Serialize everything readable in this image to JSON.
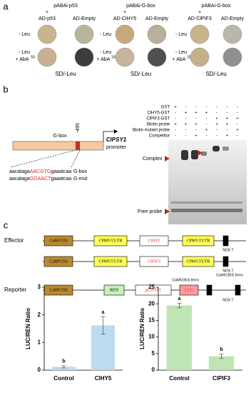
{
  "panel_a": {
    "label": "a",
    "groups": [
      {
        "title": "pABAi-p53",
        "plus": "+",
        "ad": "AD-p53",
        "empty": "AD-Empty",
        "row1": "- Leu",
        "row2": "- Leu",
        "row2b": "+ AbA",
        "sup": "50",
        "medium": "SD/-Leu"
      },
      {
        "title": "pABAi-G-box",
        "plus": "+",
        "ad": "AD-ClHY5",
        "empty": "AD-Empty",
        "row1": "- Leu",
        "row2": "- Leu",
        "row2b": "+ AbA",
        "sup": "150",
        "medium": "SD/-Leu"
      },
      {
        "title": "pABAi-G-box",
        "plus": "+",
        "ad": "AD-ClPIF3",
        "empty": "AD-Empty",
        "row1": "- Leu",
        "row2": "- Leu",
        "row2b": "+ AbA",
        "sup": "150",
        "medium": "SD/-Leu"
      }
    ]
  },
  "panel_b": {
    "label": "b",
    "gbox": "G-box",
    "position": "-495",
    "gene": "ClPSY1",
    "promoter": "promoter",
    "seq1": [
      "aacataga",
      "AACGTG",
      "gaaatcaa"
    ],
    "seq2": [
      "aacataga",
      "GGAACT",
      "gaaatcaa"
    ],
    "seq1_label": "G-box",
    "seq2_label": "G-mut",
    "rows": [
      {
        "name": "GST",
        "signs": [
          "+",
          "-",
          "-",
          "-",
          "-",
          "-",
          "-"
        ]
      },
      {
        "name": "ClHY5-GST",
        "signs": [
          "-",
          "+",
          "+",
          "+",
          "-",
          "-",
          "-"
        ]
      },
      {
        "name": "ClPIF3-GST",
        "signs": [
          "-",
          "-",
          "-",
          "-",
          "+",
          "+",
          "+"
        ]
      },
      {
        "name": "Biotin probe",
        "signs": [
          "+",
          "+",
          "+",
          "-",
          "+",
          "+",
          "-"
        ]
      },
      {
        "name": "Biotin mutant probe",
        "signs": [
          "-",
          "-",
          "-",
          "+",
          "-",
          "-",
          "+"
        ]
      },
      {
        "name": "Competitor",
        "signs": [
          "-",
          "-",
          "+",
          "-",
          "-",
          "+",
          "-"
        ]
      }
    ],
    "complex": "Complex",
    "free_probe": "Free probe"
  },
  "panel_c": {
    "label": "c",
    "effector": "Effector",
    "reporter": "Reporter",
    "effector1": [
      "CaMV35S",
      "CPMV5'UTR",
      "ClHY5",
      "CPMV3'UTR",
      "NOS T"
    ],
    "effector2": [
      "CaMV35S",
      "CPMV5'UTR",
      "ClPIF3",
      "CPMV3'UTR",
      "NOS T"
    ],
    "reporter_parts": [
      "CaMV35S",
      "REN",
      "pClPSY1",
      "LUC",
      "CaMV35S term",
      "CaMV35S term",
      "NOS T"
    ]
  },
  "chart_data": [
    {
      "type": "bar",
      "ylabel": "LUC/REN Ratio",
      "categories": [
        "Control",
        "ClHY5"
      ],
      "values": [
        0.12,
        1.62
      ],
      "errors": [
        0.04,
        0.32
      ],
      "letters": [
        "b",
        "a"
      ],
      "color": "#bcdaf0",
      "ylim": [
        0,
        3
      ],
      "yticks": [
        0,
        1,
        2,
        3
      ]
    },
    {
      "type": "bar",
      "ylabel": "LUC/REN Ratio",
      "categories": [
        "Control",
        "ClPIF3"
      ],
      "values": [
        19.5,
        4.2
      ],
      "errors": [
        0.7,
        0.7
      ],
      "letters": [
        "a",
        "b"
      ],
      "color": "#bfe5b5",
      "ylim": [
        0,
        25
      ],
      "yticks": [
        0,
        5,
        10,
        15,
        20,
        25
      ]
    }
  ]
}
